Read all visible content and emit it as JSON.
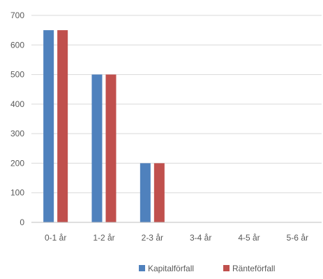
{
  "chart_data": {
    "type": "bar",
    "categories": [
      "0-1 år",
      "1-2 år",
      "2-3 år",
      "3-4 år",
      "4-5 år",
      "5-6 år"
    ],
    "series": [
      {
        "name": "Kapitalförfall",
        "values": [
          650,
          500,
          200,
          0,
          0,
          0
        ],
        "color": "#4f81bd"
      },
      {
        "name": "Räntеförfall",
        "values": [
          650,
          500,
          200,
          0,
          0,
          0
        ],
        "color": "#c0504d"
      }
    ],
    "yticks": [
      "0",
      "100",
      "200",
      "300",
      "400",
      "500",
      "600",
      "700"
    ],
    "ylim": [
      0,
      700
    ],
    "grid": true,
    "legend": "bottom"
  }
}
